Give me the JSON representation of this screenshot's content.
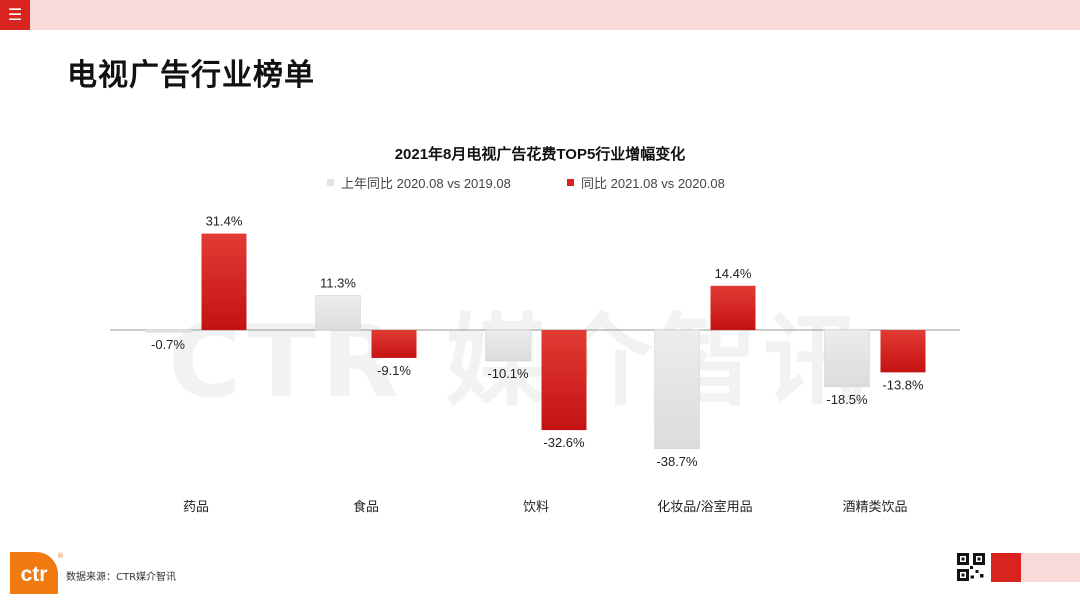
{
  "header": {
    "menu_icon": "hamburger-icon",
    "accent_color": "#d8231f",
    "bar_color": "#f8dada"
  },
  "page": {
    "title": "电视广告行业榜单"
  },
  "watermark": "CTR 媒介智讯",
  "legend": [
    {
      "label": "上年同比 2020.08 vs 2019.08",
      "color": "#e3e3e3"
    },
    {
      "label": "同比 2021.08 vs 2020.08",
      "color": "#d8231f"
    }
  ],
  "chart_data": {
    "type": "bar",
    "title": "2021年8月电视广告花费TOP5行业增幅变化",
    "categories": [
      "药品",
      "食品",
      "饮料",
      "化妆品/浴室用品",
      "酒精类饮品"
    ],
    "series": [
      {
        "name": "上年同比 2020.08 vs 2019.08",
        "values": [
          -0.7,
          11.3,
          -10.1,
          -38.7,
          -18.5
        ],
        "labels": [
          "-0.7%",
          "11.3%",
          "-10.1%",
          "-38.7%",
          "-18.5%"
        ]
      },
      {
        "name": "同比 2021.08 vs 2020.08",
        "values": [
          31.4,
          -9.1,
          -32.6,
          14.4,
          -13.8
        ],
        "labels": [
          "31.4%",
          "-9.1%",
          "-32.6%",
          "14.4%",
          "-13.8%"
        ]
      }
    ],
    "ylim": [
      -40,
      35
    ],
    "grid": false,
    "legend_position": "top"
  },
  "footer": {
    "source": "数据来源：CTR媒介智讯",
    "logo_text": "ctr",
    "logo_mark": "®",
    "qr_icon": "qr-code-icon"
  }
}
